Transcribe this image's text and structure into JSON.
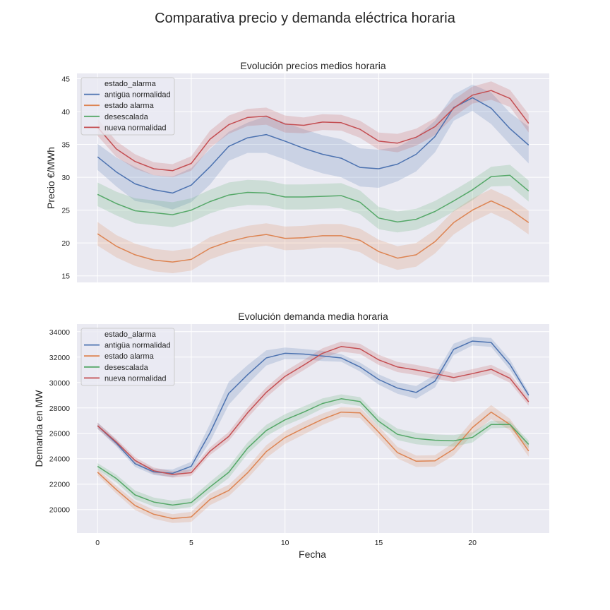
{
  "figure": {
    "title": "Comparativa precio y demanda eléctrica horaria"
  },
  "legend": {
    "title": "estado_alarma",
    "entries": [
      "antigüa normalidad",
      "estado alarma",
      "desescalada",
      "nueva normalidad"
    ]
  },
  "colors": {
    "antigüa normalidad": "#4c72b0",
    "estado alarma": "#dd8452",
    "desescalada": "#55a868",
    "nueva normalidad": "#c44e52",
    "axes_bg": "#eaeaf2",
    "grid": "#ffffff"
  },
  "chart_data": [
    {
      "type": "line",
      "title": "Evolución precios medios horaria",
      "xlabel": "",
      "ylabel": "Precio €/MWh",
      "x": [
        0,
        1,
        2,
        3,
        4,
        5,
        6,
        7,
        8,
        9,
        10,
        11,
        12,
        13,
        14,
        15,
        16,
        17,
        18,
        19,
        20,
        21,
        22,
        23
      ],
      "xticks": [
        0,
        5,
        10,
        15,
        20
      ],
      "xlim": [
        -1.1,
        24.1
      ],
      "yticks": [
        15,
        20,
        25,
        30,
        35,
        40,
        45
      ],
      "ylim": [
        14.0,
        45.8
      ],
      "grid": true,
      "legend_position": "top-left",
      "series": [
        {
          "name": "antigüa normalidad",
          "values": [
            33.1,
            30.8,
            29.0,
            28.1,
            27.6,
            28.8,
            31.6,
            34.7,
            36.0,
            36.5,
            35.5,
            34.4,
            33.5,
            32.9,
            31.5,
            31.3,
            32.0,
            33.5,
            36.2,
            40.6,
            42.1,
            40.5,
            37.4,
            34.9
          ],
          "ci_half": [
            2.0,
            2.2,
            2.6,
            2.2,
            2.5,
            2.6,
            2.7,
            2.2,
            2.3,
            2.8,
            2.8,
            2.9,
            2.9,
            2.9,
            2.9,
            2.9,
            2.6,
            2.6,
            2.4,
            2.0,
            2.0,
            2.4,
            2.4,
            2.8
          ]
        },
        {
          "name": "estado alarma",
          "values": [
            21.4,
            19.5,
            18.2,
            17.4,
            17.1,
            17.5,
            19.2,
            20.2,
            20.9,
            21.3,
            20.7,
            20.8,
            21.1,
            21.1,
            20.4,
            18.7,
            17.7,
            18.2,
            20.2,
            23.1,
            25.0,
            26.4,
            25.1,
            23.1
          ],
          "ci_half": [
            1.8,
            1.7,
            1.7,
            1.7,
            1.7,
            1.7,
            1.7,
            1.7,
            1.7,
            1.7,
            1.8,
            1.8,
            1.8,
            1.8,
            1.8,
            1.8,
            1.8,
            1.8,
            1.8,
            1.8,
            1.8,
            1.8,
            1.8,
            1.8
          ]
        },
        {
          "name": "desescalada",
          "values": [
            27.4,
            26.0,
            24.9,
            24.6,
            24.3,
            25.0,
            26.3,
            27.3,
            27.7,
            27.6,
            27.0,
            27.0,
            27.1,
            27.2,
            26.2,
            23.8,
            23.2,
            23.6,
            24.8,
            26.4,
            28.1,
            30.1,
            30.3,
            27.9
          ],
          "ci_half": [
            1.8,
            1.8,
            1.9,
            1.9,
            1.9,
            1.8,
            1.8,
            1.9,
            1.9,
            1.9,
            1.9,
            1.9,
            1.9,
            1.9,
            1.8,
            1.7,
            1.6,
            1.6,
            1.6,
            1.6,
            1.6,
            1.5,
            1.6,
            1.6
          ]
        },
        {
          "name": "nueva normalidad",
          "values": [
            37.6,
            34.3,
            32.4,
            31.3,
            31.0,
            32.1,
            35.8,
            38.0,
            39.1,
            39.3,
            38.1,
            37.9,
            38.4,
            38.3,
            37.3,
            35.5,
            35.2,
            36.1,
            37.7,
            40.5,
            42.5,
            43.2,
            42.0,
            38.2
          ],
          "ci_half": [
            1.3,
            1.2,
            1.1,
            1.0,
            1.0,
            1.1,
            1.3,
            1.4,
            1.3,
            1.3,
            1.3,
            1.2,
            1.2,
            1.2,
            1.3,
            1.3,
            1.4,
            1.3,
            1.3,
            1.3,
            1.3,
            1.4,
            1.3,
            1.4
          ]
        }
      ]
    },
    {
      "type": "line",
      "title": "Evolución demanda media horaria",
      "xlabel": "Fecha",
      "ylabel": "Demanda en MW",
      "x": [
        0,
        1,
        2,
        3,
        4,
        5,
        6,
        7,
        8,
        9,
        10,
        11,
        12,
        13,
        14,
        15,
        16,
        17,
        18,
        19,
        20,
        21,
        22,
        23
      ],
      "xticks": [
        0,
        5,
        10,
        15,
        20
      ],
      "xlim": [
        -1.1,
        24.1
      ],
      "yticks": [
        20000,
        22000,
        24000,
        26000,
        28000,
        30000,
        32000,
        34000
      ],
      "ylim": [
        18150,
        34600
      ],
      "grid": true,
      "legend_position": "top-left",
      "series": [
        {
          "name": "antigüa normalidad",
          "values": [
            26600,
            25220,
            23610,
            22960,
            22850,
            23410,
            26040,
            29150,
            30610,
            31930,
            32300,
            32240,
            32090,
            31930,
            31220,
            30240,
            29560,
            29220,
            30110,
            32610,
            33260,
            33150,
            31410,
            29000
          ],
          "ci_half": [
            250,
            250,
            250,
            250,
            300,
            350,
            700,
            900,
            750,
            600,
            450,
            400,
            400,
            300,
            350,
            400,
            450,
            500,
            500,
            450,
            350,
            350,
            400,
            250
          ]
        },
        {
          "name": "estado alarma",
          "values": [
            22940,
            21560,
            20310,
            19630,
            19290,
            19420,
            20800,
            21500,
            22890,
            24560,
            25670,
            26410,
            27110,
            27670,
            27610,
            26090,
            24480,
            23800,
            23830,
            24760,
            26460,
            27670,
            26700,
            24610
          ],
          "ci_half": [
            250,
            300,
            350,
            350,
            350,
            400,
            450,
            450,
            450,
            500,
            500,
            500,
            450,
            400,
            400,
            450,
            450,
            450,
            450,
            500,
            550,
            550,
            450,
            450
          ]
        },
        {
          "name": "desescalada",
          "values": [
            23400,
            22440,
            21150,
            20590,
            20350,
            20550,
            21780,
            22930,
            24830,
            26220,
            27060,
            27670,
            28350,
            28720,
            28500,
            26940,
            25920,
            25590,
            25460,
            25410,
            25680,
            26700,
            26700,
            25130
          ],
          "ci_half": [
            250,
            300,
            350,
            350,
            350,
            350,
            400,
            450,
            450,
            450,
            450,
            450,
            400,
            350,
            350,
            400,
            450,
            450,
            450,
            450,
            400,
            300,
            250,
            300
          ]
        },
        {
          "name": "nueva normalidad",
          "values": [
            26600,
            25310,
            23870,
            23050,
            22760,
            22900,
            24590,
            25760,
            27610,
            29220,
            30480,
            31370,
            32300,
            32830,
            32650,
            31780,
            31220,
            30980,
            30700,
            30390,
            30700,
            31040,
            30330,
            28480
          ],
          "ci_half": [
            250,
            250,
            250,
            250,
            250,
            250,
            300,
            350,
            400,
            400,
            400,
            400,
            400,
            400,
            400,
            400,
            400,
            400,
            400,
            350,
            350,
            350,
            350,
            300
          ]
        }
      ]
    }
  ]
}
